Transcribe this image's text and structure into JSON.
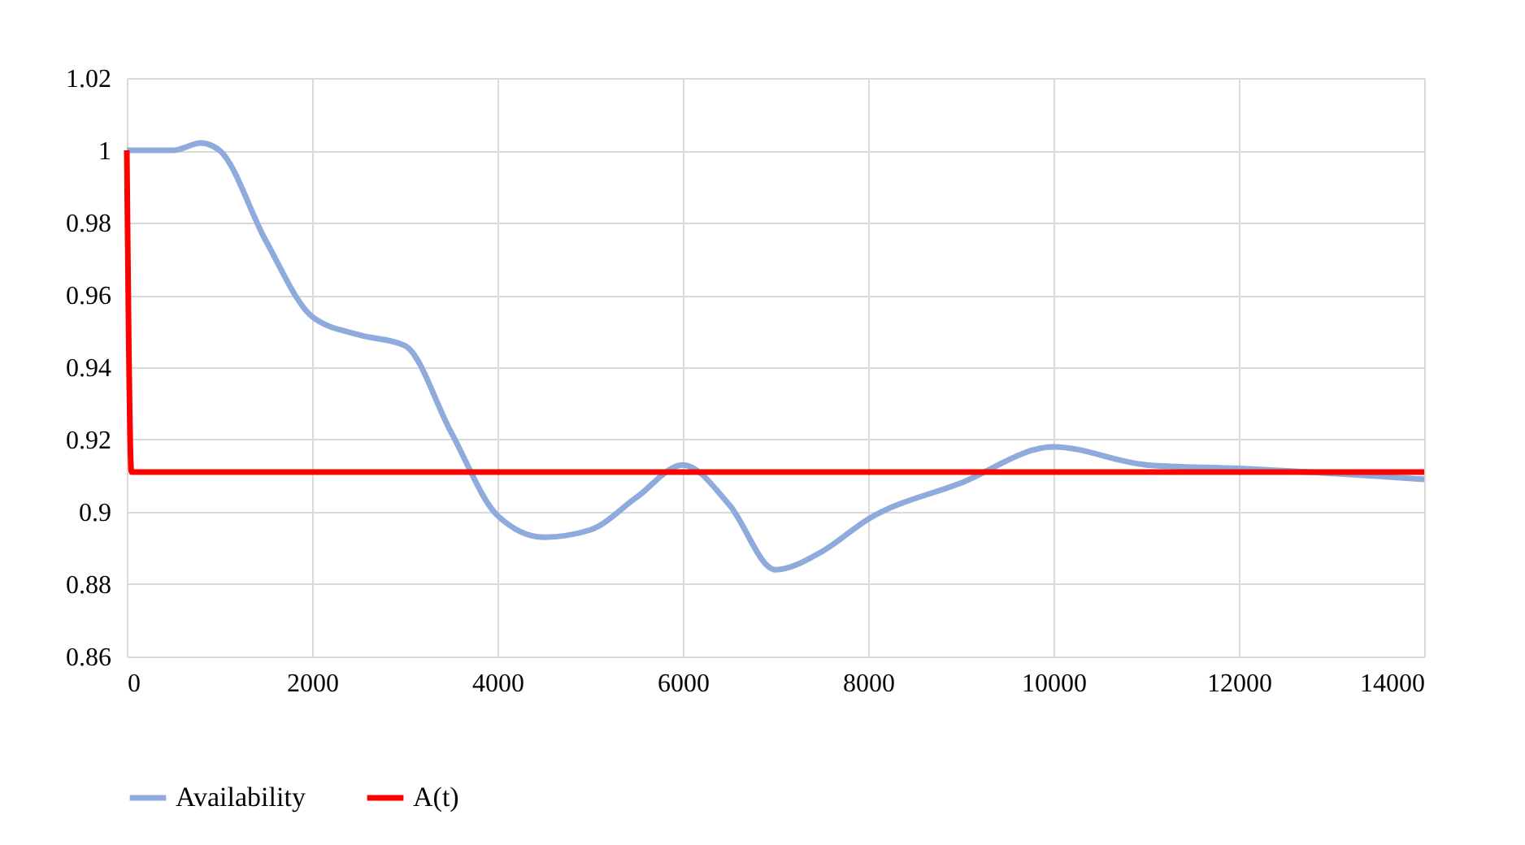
{
  "chart_data": {
    "type": "line",
    "xlim": [
      0,
      14000
    ],
    "xticks": [
      0,
      2000,
      4000,
      6000,
      8000,
      10000,
      12000,
      14000
    ],
    "ylim": [
      0.86,
      1.02
    ],
    "yticks": [
      0.86,
      0.88,
      0.9,
      0.92,
      0.94,
      0.96,
      0.98,
      1,
      1.02
    ],
    "grid": true,
    "legend": "bottom",
    "line_style": "solid",
    "marker": "none",
    "series": [
      {
        "name": "Availability",
        "color": "#8faadc",
        "x": [
          0,
          500,
          800,
          1000,
          1500,
          2000,
          2500,
          3000,
          3500,
          4000,
          4500,
          5000,
          5500,
          6000,
          6500,
          7000,
          7500,
          8000,
          9000,
          10000,
          11000,
          12000,
          14000
        ],
        "values": [
          1,
          1,
          1.002,
          1,
          0.975,
          0.954,
          0.949,
          0.946,
          0.922,
          0.899,
          0.893,
          0.895,
          0.904,
          0.913,
          0.902,
          0.884,
          0.889,
          0.898,
          0.908,
          0.918,
          0.913,
          0.912,
          0.909
        ]
      },
      {
        "name": "A(t)",
        "color": "#ff0000",
        "x": [
          0,
          50,
          14000
        ],
        "values": [
          1,
          0.911,
          0.911
        ]
      }
    ]
  }
}
